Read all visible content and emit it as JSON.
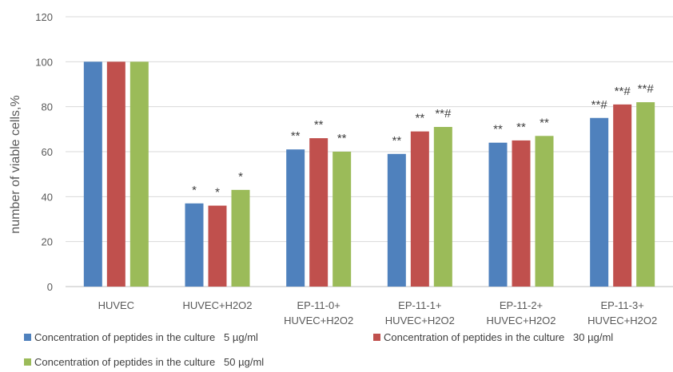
{
  "chart_data": {
    "type": "bar",
    "ylabel": "number of viable cells,%",
    "ylim": [
      0,
      120
    ],
    "yticks": [
      0,
      20,
      40,
      60,
      80,
      100,
      120
    ],
    "grid": true,
    "legend_position": "bottom",
    "categories": [
      [
        "HUVEC"
      ],
      [
        "HUVEC+H2O2"
      ],
      [
        "EP-11-0+",
        "HUVEC+H2O2"
      ],
      [
        "EP-11-1+",
        "HUVEC+H2O2"
      ],
      [
        "EP-11-2+",
        "HUVEC+H2O2"
      ],
      [
        "EP-11-3+",
        "HUVEC+H2O2"
      ]
    ],
    "series": [
      {
        "name": "Concentration of peptides in the culture   5 µg/ml",
        "color": "#4f81bd",
        "values": [
          100,
          37,
          61,
          59,
          64,
          75
        ],
        "annotations": [
          "",
          "*",
          "**",
          "**",
          "**",
          "**#"
        ]
      },
      {
        "name": "Concentration of peptides in the culture   30 µg/ml",
        "color": "#c0504d",
        "values": [
          100,
          36,
          66,
          69,
          65,
          81
        ],
        "annotations": [
          "",
          "*",
          "**",
          "**",
          "**",
          "**#"
        ]
      },
      {
        "name": "Concentration of peptides in the culture   50 µg/ml",
        "color": "#9bbb59",
        "values": [
          100,
          43,
          60,
          71,
          67,
          82
        ],
        "annotations": [
          "",
          "*",
          "**",
          "**#",
          "**",
          "**#"
        ]
      }
    ]
  }
}
